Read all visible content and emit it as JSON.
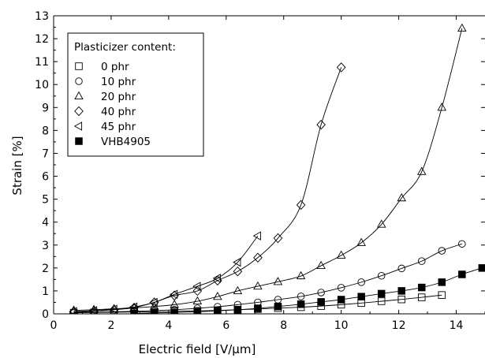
{
  "chart_data": {
    "type": "scatter",
    "title": "",
    "xlabel": "Electric field [V/μm]",
    "ylabel": "Strain [%]",
    "xlim": [
      0,
      15
    ],
    "ylim": [
      0,
      13
    ],
    "xticks": [
      0,
      2,
      4,
      6,
      8,
      10,
      12,
      14
    ],
    "yticks": [
      0,
      1,
      2,
      3,
      4,
      5,
      6,
      7,
      8,
      9,
      10,
      11,
      12,
      13
    ],
    "grid": false,
    "legend": {
      "title": "Plasticizer content:",
      "placement": "top-left"
    },
    "series": [
      {
        "name": "0 phr",
        "marker": "square-open",
        "x": [
          0.7,
          1.4,
          2.1,
          2.8,
          3.5,
          4.2,
          5.0,
          5.7,
          6.4,
          7.1,
          7.8,
          8.6,
          9.3,
          10.0,
          10.7,
          11.4,
          12.1,
          12.8,
          13.5
        ],
        "y": [
          0.05,
          0.06,
          0.07,
          0.08,
          0.09,
          0.11,
          0.13,
          0.15,
          0.18,
          0.21,
          0.25,
          0.29,
          0.34,
          0.4,
          0.47,
          0.55,
          0.63,
          0.72,
          0.82
        ]
      },
      {
        "name": "10 phr",
        "marker": "circle-open",
        "x": [
          0.7,
          1.4,
          2.1,
          2.8,
          3.5,
          4.2,
          5.0,
          5.7,
          6.4,
          7.1,
          7.8,
          8.6,
          9.3,
          10.0,
          10.7,
          11.4,
          12.1,
          12.8,
          13.5,
          14.2
        ],
        "y": [
          0.06,
          0.07,
          0.09,
          0.11,
          0.14,
          0.18,
          0.24,
          0.31,
          0.4,
          0.5,
          0.62,
          0.76,
          0.93,
          1.14,
          1.38,
          1.66,
          1.98,
          2.3,
          2.75,
          3.05
        ]
      },
      {
        "name": "20 phr",
        "marker": "triangle-up-open",
        "x": [
          0.7,
          1.4,
          2.1,
          2.8,
          3.5,
          4.2,
          5.0,
          5.7,
          6.4,
          7.1,
          7.8,
          8.6,
          9.3,
          10.0,
          10.7,
          11.4,
          12.1,
          12.8,
          13.5,
          14.2
        ],
        "y": [
          0.15,
          0.18,
          0.22,
          0.26,
          0.32,
          0.4,
          0.55,
          0.75,
          1.0,
          1.2,
          1.4,
          1.65,
          2.1,
          2.55,
          3.1,
          3.9,
          5.05,
          6.2,
          9.0,
          12.45
        ]
      },
      {
        "name": "40 phr",
        "marker": "diamond-open",
        "x": [
          0.7,
          1.4,
          2.1,
          2.8,
          3.5,
          4.2,
          5.0,
          5.7,
          6.4,
          7.1,
          7.8,
          8.6,
          9.3,
          10.0
        ],
        "y": [
          0.08,
          0.12,
          0.18,
          0.27,
          0.5,
          0.8,
          1.0,
          1.45,
          1.85,
          2.45,
          3.3,
          4.75,
          8.25,
          10.75
        ]
      },
      {
        "name": "45 phr",
        "marker": "triangle-left-open",
        "x": [
          0.7,
          1.4,
          2.1,
          2.8,
          3.5,
          4.2,
          5.0,
          5.7,
          6.4,
          7.1
        ],
        "y": [
          0.1,
          0.14,
          0.2,
          0.3,
          0.5,
          0.85,
          1.2,
          1.55,
          2.25,
          3.4
        ]
      },
      {
        "name": "VHB4905",
        "marker": "square-filled",
        "x": [
          2.8,
          3.5,
          4.2,
          5.0,
          5.7,
          6.4,
          7.1,
          7.8,
          8.6,
          9.3,
          10.0,
          10.7,
          11.4,
          12.1,
          12.8,
          13.5,
          14.2,
          14.9
        ],
        "y": [
          0.02,
          0.04,
          0.06,
          0.09,
          0.13,
          0.18,
          0.24,
          0.32,
          0.42,
          0.52,
          0.62,
          0.75,
          0.88,
          1.0,
          1.15,
          1.38,
          1.72,
          2.0
        ]
      }
    ]
  }
}
